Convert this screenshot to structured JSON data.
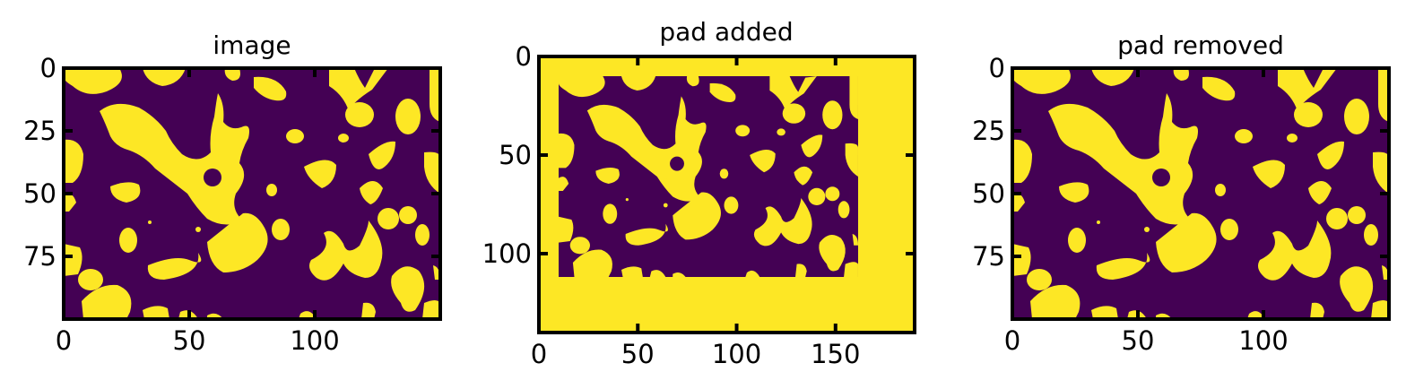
{
  "colors": {
    "background": "#440154",
    "foreground": "#fde725",
    "frame": "#000000"
  },
  "chart_data": [
    {
      "type": "heatmap",
      "title": "image",
      "colormap": "viridis",
      "values": "binary 0/1 porous-media image (purple = 0, yellow = 1)",
      "x_ticks": [
        "0",
        "50",
        "100"
      ],
      "y_ticks": [
        "0",
        "25",
        "50",
        "75"
      ],
      "xlim": [
        0,
        150
      ],
      "ylim": [
        100,
        0
      ]
    },
    {
      "type": "heatmap",
      "title": "pad added",
      "colormap": "viridis",
      "values": "same image with a yellow (value 1) border of padding added",
      "x_ticks": [
        "0",
        "50",
        "100",
        "150"
      ],
      "y_ticks": [
        "0",
        "50",
        "100"
      ],
      "xlim": [
        0,
        190
      ],
      "ylim": [
        140,
        0
      ]
    },
    {
      "type": "heatmap",
      "title": "pad removed",
      "colormap": "viridis",
      "values": "padding removed, identical to original image",
      "x_ticks": [
        "0",
        "50",
        "100"
      ],
      "y_ticks": [
        "0",
        "25",
        "50",
        "75"
      ],
      "xlim": [
        0,
        150
      ],
      "ylim": [
        100,
        0
      ]
    }
  ]
}
